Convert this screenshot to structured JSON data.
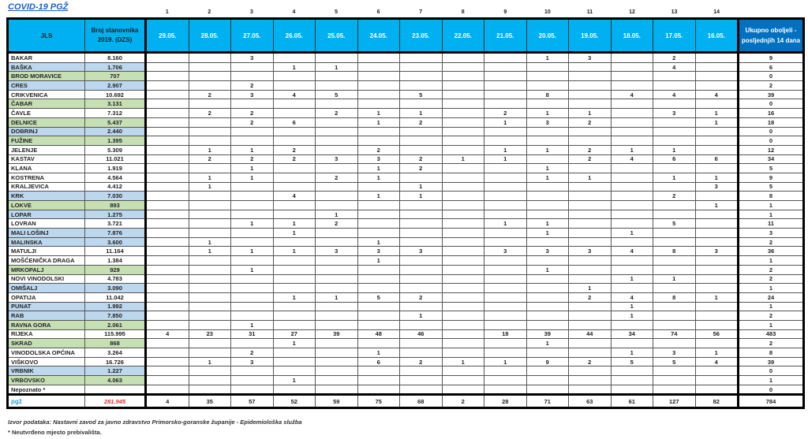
{
  "title": "COVID-19  PGŽ",
  "column_numbers": [
    "1",
    "2",
    "3",
    "4",
    "5",
    "6",
    "7",
    "8",
    "9",
    "10",
    "11",
    "12",
    "13",
    "14"
  ],
  "headers": {
    "jls": "JLS",
    "population": "Broj stanovnika 2019. (DZS)",
    "dates": [
      "29.05.",
      "28.05.",
      "27.05.",
      "26.05.",
      "25.05.",
      "24.05.",
      "23.05.",
      "22.05.",
      "21.05.",
      "20.05.",
      "19.05.",
      "18.05.",
      "17.05.",
      "16.05."
    ],
    "total": "Ukupno oboljeli - posljednjih 14 dana"
  },
  "colors": {
    "header": "#00b0f0",
    "total_header": "#0070c0",
    "blue_row": "#bdd7ee",
    "green_row": "#c6e0b4",
    "pop_total": "#e03030"
  },
  "rows": [
    {
      "name": "BAKAR",
      "population": "8.160",
      "color": "white",
      "values": [
        "",
        "",
        "3",
        "",
        "",
        "",
        "",
        "",
        "",
        "1",
        "3",
        "",
        "2",
        ""
      ],
      "total": "9"
    },
    {
      "name": "BAŠKA",
      "population": "1.706",
      "color": "blue",
      "values": [
        "",
        "",
        "",
        "1",
        "1",
        "",
        "",
        "",
        "",
        "",
        "",
        "",
        "4",
        ""
      ],
      "total": "6"
    },
    {
      "name": "BROD MORAVICE",
      "population": "707",
      "color": "green",
      "values": [
        "",
        "",
        "",
        "",
        "",
        "",
        "",
        "",
        "",
        "",
        "",
        "",
        "",
        ""
      ],
      "total": "0"
    },
    {
      "name": "CRES",
      "population": "2.907",
      "color": "blue",
      "values": [
        "",
        "",
        "2",
        "",
        "",
        "",
        "",
        "",
        "",
        "",
        "",
        "",
        "",
        ""
      ],
      "total": "2"
    },
    {
      "name": "CRIKVENICA",
      "population": "10.692",
      "color": "white",
      "values": [
        "",
        "2",
        "3",
        "4",
        "5",
        "",
        "5",
        "",
        "",
        "8",
        "",
        "4",
        "4",
        "4"
      ],
      "total": "39"
    },
    {
      "name": "ČABAR",
      "population": "3.131",
      "color": "green",
      "values": [
        "",
        "",
        "",
        "",
        "",
        "",
        "",
        "",
        "",
        "",
        "",
        "",
        "",
        ""
      ],
      "total": "0"
    },
    {
      "name": "ČAVLE",
      "population": "7.312",
      "color": "white",
      "values": [
        "",
        "2",
        "2",
        "",
        "2",
        "1",
        "1",
        "",
        "2",
        "1",
        "1",
        "",
        "3",
        "1"
      ],
      "total": "16"
    },
    {
      "name": "DELNICE",
      "population": "5.437",
      "color": "green",
      "values": [
        "",
        "",
        "2",
        "6",
        "",
        "1",
        "2",
        "",
        "1",
        "3",
        "2",
        "",
        "",
        "1"
      ],
      "total": "18"
    },
    {
      "name": "DOBRINJ",
      "population": "2.440",
      "color": "blue",
      "values": [
        "",
        "",
        "",
        "",
        "",
        "",
        "",
        "",
        "",
        "",
        "",
        "",
        "",
        ""
      ],
      "total": "0"
    },
    {
      "name": "FUŽINE",
      "population": "1.395",
      "color": "green",
      "values": [
        "",
        "",
        "",
        "",
        "",
        "",
        "",
        "",
        "",
        "",
        "",
        "",
        "",
        ""
      ],
      "total": "0"
    },
    {
      "name": "JELENJE",
      "population": "5.309",
      "color": "white",
      "values": [
        "",
        "1",
        "1",
        "2",
        "",
        "2",
        "",
        "",
        "1",
        "1",
        "2",
        "1",
        "1",
        ""
      ],
      "total": "12"
    },
    {
      "name": "KASTAV",
      "population": "11.021",
      "color": "white",
      "values": [
        "",
        "2",
        "2",
        "2",
        "3",
        "3",
        "2",
        "1",
        "1",
        "",
        "2",
        "4",
        "6",
        "6"
      ],
      "total": "34"
    },
    {
      "name": "KLANA",
      "population": "1.919",
      "color": "white",
      "values": [
        "",
        "",
        "1",
        "",
        "",
        "1",
        "2",
        "",
        "",
        "1",
        "",
        "",
        "",
        ""
      ],
      "total": "5"
    },
    {
      "name": "KOSTRENA",
      "population": "4.564",
      "color": "white",
      "values": [
        "",
        "1",
        "1",
        "",
        "2",
        "1",
        "",
        "",
        "",
        "1",
        "1",
        "",
        "1",
        "1"
      ],
      "total": "9"
    },
    {
      "name": "KRALJEVICA",
      "population": "4.412",
      "color": "white",
      "values": [
        "",
        "1",
        "",
        "",
        "",
        "",
        "1",
        "",
        "",
        "",
        "",
        "",
        "",
        "3"
      ],
      "total": "5"
    },
    {
      "name": "KRK",
      "population": "7.030",
      "color": "blue",
      "values": [
        "",
        "",
        "",
        "4",
        "",
        "1",
        "1",
        "",
        "",
        "",
        "",
        "",
        "2",
        ""
      ],
      "total": "8"
    },
    {
      "name": "LOKVE",
      "population": "893",
      "color": "green",
      "values": [
        "",
        "",
        "",
        "",
        "",
        "",
        "",
        "",
        "",
        "",
        "",
        "",
        "",
        "1"
      ],
      "total": "1"
    },
    {
      "name": "LOPAR",
      "population": "1.275",
      "color": "blue",
      "values": [
        "",
        "",
        "",
        "",
        "1",
        "",
        "",
        "",
        "",
        "",
        "",
        "",
        "",
        ""
      ],
      "total": "1"
    },
    {
      "name": "LOVRAN",
      "population": "3.721",
      "color": "white",
      "values": [
        "",
        "",
        "1",
        "1",
        "2",
        "",
        "",
        "",
        "1",
        "1",
        "",
        "",
        "5",
        ""
      ],
      "total": "11"
    },
    {
      "name": "MALI LOŠINJ",
      "population": "7.876",
      "color": "blue",
      "values": [
        "",
        "",
        "",
        "1",
        "",
        "",
        "",
        "",
        "",
        "1",
        "",
        "1",
        "",
        ""
      ],
      "total": "3"
    },
    {
      "name": "MALINSKA",
      "population": "3.600",
      "color": "blue",
      "values": [
        "",
        "1",
        "",
        "",
        "",
        "1",
        "",
        "",
        "",
        "",
        "",
        "",
        "",
        ""
      ],
      "total": "2"
    },
    {
      "name": "MATULJI",
      "population": "11.164",
      "color": "white",
      "values": [
        "",
        "1",
        "1",
        "1",
        "3",
        "3",
        "3",
        "",
        "3",
        "3",
        "3",
        "4",
        "8",
        "3"
      ],
      "total": "36"
    },
    {
      "name": "MOŠĆENIČKA DRAGA",
      "population": "1.384",
      "color": "white",
      "values": [
        "",
        "",
        "",
        "",
        "",
        "1",
        "",
        "",
        "",
        "",
        "",
        "",
        "",
        ""
      ],
      "total": "1"
    },
    {
      "name": "MRKOPALJ",
      "population": "929",
      "color": "green",
      "values": [
        "",
        "",
        "1",
        "",
        "",
        "",
        "",
        "",
        "",
        "1",
        "",
        "",
        "",
        ""
      ],
      "total": "2"
    },
    {
      "name": "NOVI VINODOLSKI",
      "population": "4.783",
      "color": "white",
      "values": [
        "",
        "",
        "",
        "",
        "",
        "",
        "",
        "",
        "",
        "",
        "",
        "1",
        "1",
        ""
      ],
      "total": "2"
    },
    {
      "name": "OMIŠALJ",
      "population": "3.090",
      "color": "blue",
      "values": [
        "",
        "",
        "",
        "",
        "",
        "",
        "",
        "",
        "",
        "",
        "1",
        "",
        "",
        ""
      ],
      "total": "1"
    },
    {
      "name": "OPATIJA",
      "population": "11.042",
      "color": "white",
      "values": [
        "",
        "",
        "",
        "1",
        "1",
        "5",
        "2",
        "",
        "",
        "",
        "2",
        "4",
        "8",
        "1"
      ],
      "total": "24"
    },
    {
      "name": "PUNAT",
      "population": "1.992",
      "color": "blue",
      "values": [
        "",
        "",
        "",
        "",
        "",
        "",
        "",
        "",
        "",
        "",
        "",
        "1",
        "",
        ""
      ],
      "total": "1"
    },
    {
      "name": "RAB",
      "population": "7.850",
      "color": "blue",
      "values": [
        "",
        "",
        "",
        "",
        "",
        "",
        "1",
        "",
        "",
        "",
        "",
        "1",
        "",
        ""
      ],
      "total": "2"
    },
    {
      "name": "RAVNA GORA",
      "population": "2.061",
      "color": "green",
      "values": [
        "",
        "",
        "1",
        "",
        "",
        "",
        "",
        "",
        "",
        "",
        "",
        "",
        "",
        ""
      ],
      "total": "1"
    },
    {
      "name": "RIJEKA",
      "population": "115.995",
      "color": "white",
      "values": [
        "4",
        "23",
        "31",
        "27",
        "39",
        "48",
        "46",
        "",
        "18",
        "39",
        "44",
        "34",
        "74",
        "56"
      ],
      "total": "483"
    },
    {
      "name": "SKRAD",
      "population": "868",
      "color": "green",
      "values": [
        "",
        "",
        "",
        "1",
        "",
        "",
        "",
        "",
        "",
        "1",
        "",
        "",
        "",
        ""
      ],
      "total": "2"
    },
    {
      "name": "VINODOLSKA OPĆINA",
      "population": "3.264",
      "color": "white",
      "values": [
        "",
        "",
        "2",
        "",
        "",
        "1",
        "",
        "",
        "",
        "",
        "",
        "1",
        "3",
        "1"
      ],
      "total": "8"
    },
    {
      "name": "VIŠKOVO",
      "population": "16.726",
      "color": "white",
      "values": [
        "",
        "1",
        "3",
        "",
        "",
        "6",
        "2",
        "1",
        "1",
        "9",
        "2",
        "5",
        "5",
        "4"
      ],
      "total": "39"
    },
    {
      "name": "VRBNIK",
      "population": "1.227",
      "color": "blue",
      "values": [
        "",
        "",
        "",
        "",
        "",
        "",
        "",
        "",
        "",
        "",
        "",
        "",
        "",
        ""
      ],
      "total": "0"
    },
    {
      "name": "VRBOVSKO",
      "population": "4.063",
      "color": "green",
      "values": [
        "",
        "",
        "",
        "1",
        "",
        "",
        "",
        "",
        "",
        "",
        "",
        "",
        "",
        ""
      ],
      "total": "1"
    },
    {
      "name": "Nepoznato *",
      "population": "",
      "color": "white",
      "values": [
        "",
        "",
        "",
        "",
        "",
        "",
        "",
        "",
        "",
        "",
        "",
        "",
        "",
        ""
      ],
      "total": "0"
    }
  ],
  "summary": {
    "logo": "pgž",
    "population": "281.945",
    "values": [
      "4",
      "35",
      "57",
      "52",
      "59",
      "75",
      "68",
      "2",
      "28",
      "71",
      "63",
      "61",
      "127",
      "82"
    ],
    "total": "784"
  },
  "footer": {
    "source": "Izvor podataka: Nastavni zavod za javno zdravstvo Primorsko-goranske županije  - Epidemiološka služba",
    "note": "* Neutvrđeno mjesto prebivališta."
  }
}
